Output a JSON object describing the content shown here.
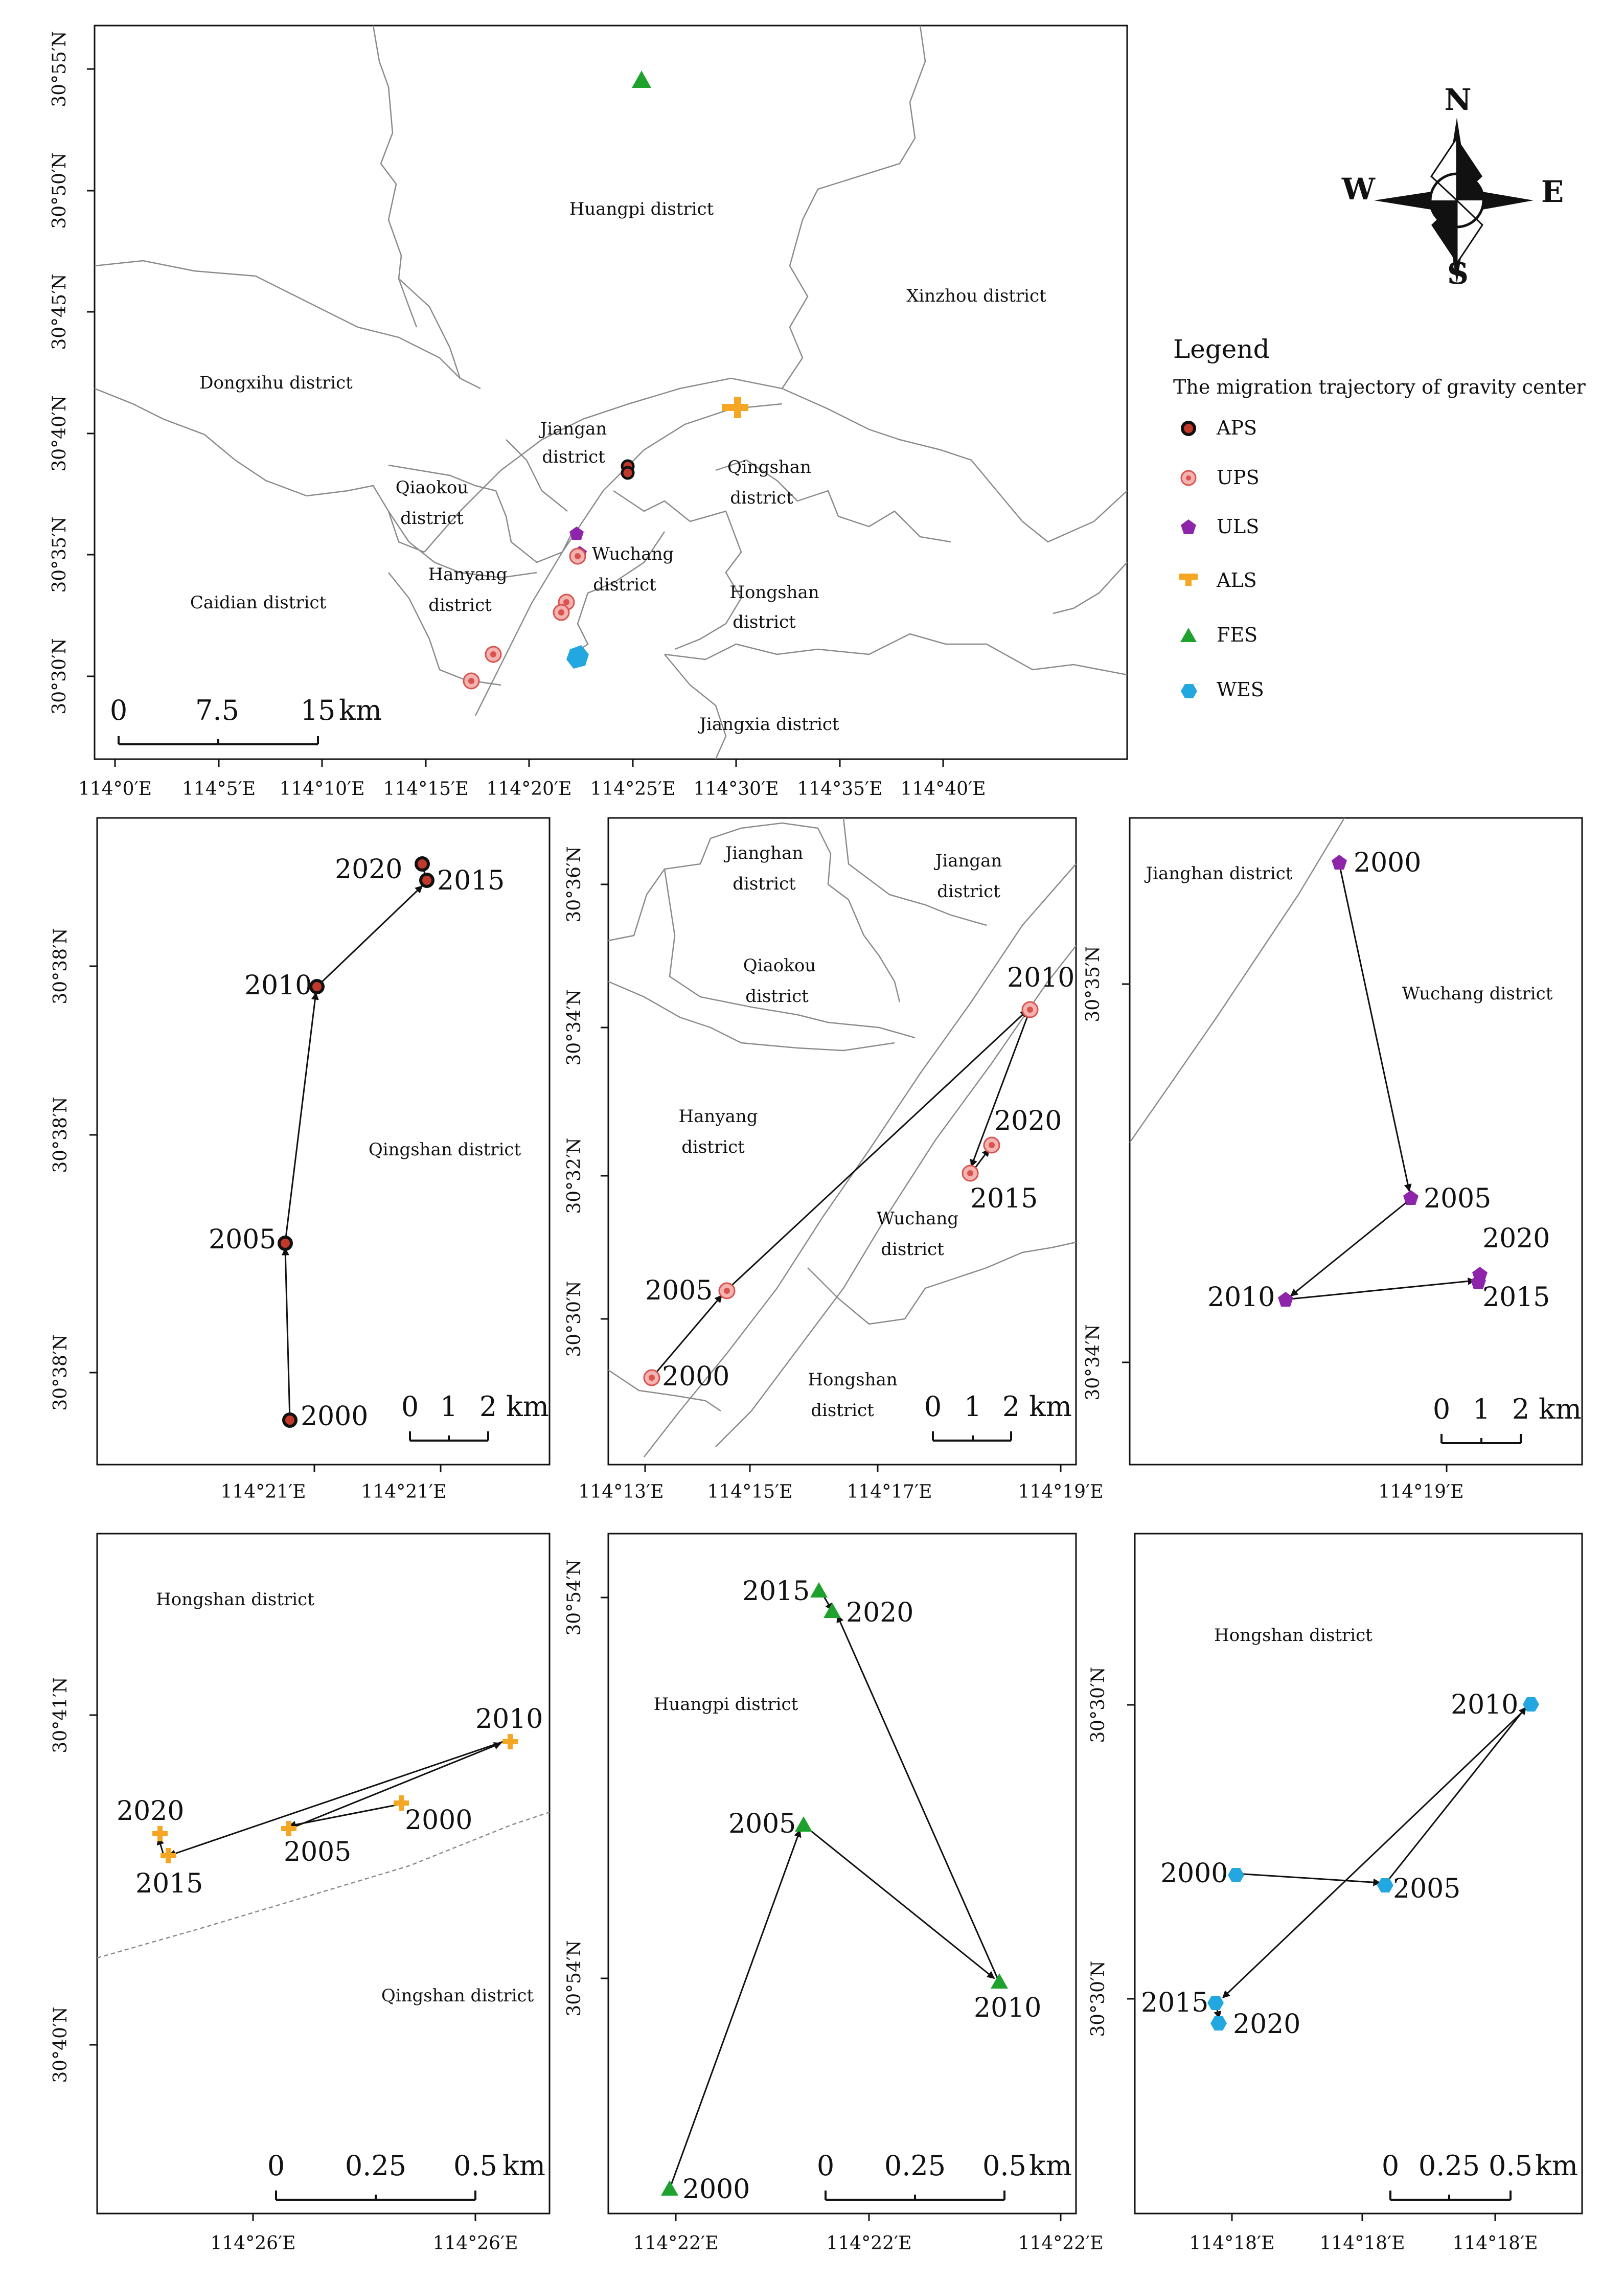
{
  "colors": {
    "APS": "#c0392b",
    "UPS": "#e57373",
    "ULS": "#8e24aa",
    "ALS": "#f5a623",
    "FES": "#1fa12e",
    "WES": "#22a7e0"
  },
  "compass": {
    "n": "N",
    "s": "S",
    "e": "E",
    "w": "W"
  },
  "legend": {
    "title": "Legend",
    "subtitle": "The migration trajectory of gravity center",
    "items": [
      {
        "key": "APS",
        "label": "APS",
        "icon": "black-ring-circle"
      },
      {
        "key": "UPS",
        "label": "UPS",
        "icon": "pink-target-circle"
      },
      {
        "key": "ULS",
        "label": "ULS",
        "icon": "purple-pentagon"
      },
      {
        "key": "ALS",
        "label": "ALS",
        "icon": "orange-cross"
      },
      {
        "key": "FES",
        "label": "FES",
        "icon": "green-triangle"
      },
      {
        "key": "WES",
        "label": "WES",
        "icon": "blue-hexagon"
      }
    ]
  },
  "main": {
    "x_ticks": [
      "114°0′E",
      "114°5′E",
      "114°10′E",
      "114°15′E",
      "114°20′E",
      "114°25′E",
      "114°30′E",
      "114°35′E",
      "114°40′E"
    ],
    "y_ticks": [
      "30°55′N",
      "30°50′N",
      "30°45′N",
      "30°40′N",
      "30°35′N",
      "30°30′N"
    ],
    "districts": [
      "Huangpi district",
      "Xinzhou district",
      "Dongxihu district",
      "Jiangan district",
      "Qingshan district",
      "Qiaokou district",
      "Wuchang district",
      "Hanyang district",
      "Hongshan district",
      "Caidian district",
      "Jiangxia district"
    ],
    "scale": {
      "labels": [
        "0",
        "7.5",
        "15"
      ],
      "unit": "km"
    }
  },
  "panels": [
    {
      "key": "APS",
      "x_ticks": [
        "114°21′E",
        "114°21′E"
      ],
      "y_ticks": [
        "30°38′N",
        "30°38′N",
        "30°38′N"
      ],
      "districts": [
        "Qingshan district"
      ],
      "scale": {
        "labels": [
          "0",
          "1",
          "2"
        ],
        "unit": "km"
      },
      "years": [
        "2000",
        "2005",
        "2010",
        "2015",
        "2020"
      ]
    },
    {
      "key": "UPS",
      "x_ticks": [
        "114°13′E",
        "114°15′E",
        "114°17′E",
        "114°19′E"
      ],
      "y_ticks": [
        "30°36′N",
        "30°34′N",
        "30°32′N",
        "30°30′N"
      ],
      "districts": [
        "Jianghan district",
        "Jiangan district",
        "Qiaokou district",
        "Hanyang district",
        "Wuchang district",
        "Hongshan district"
      ],
      "scale": {
        "labels": [
          "0",
          "1",
          "2"
        ],
        "unit": "km"
      },
      "years": [
        "2000",
        "2005",
        "2010",
        "2015",
        "2020"
      ]
    },
    {
      "key": "ULS",
      "x_ticks": [
        "114°19′E"
      ],
      "y_ticks": [
        "30°35′N",
        "30°34′N"
      ],
      "districts": [
        "Jianghan district",
        "Wuchang district"
      ],
      "scale": {
        "labels": [
          "0",
          "1",
          "2"
        ],
        "unit": "km"
      },
      "years": [
        "2000",
        "2005",
        "2010",
        "2015",
        "2020"
      ]
    },
    {
      "key": "ALS",
      "x_ticks": [
        "114°26′E",
        "114°26′E"
      ],
      "y_ticks": [
        "30°41′N",
        "30°40′N"
      ],
      "districts": [
        "Hongshan district",
        "Qingshan district"
      ],
      "scale": {
        "labels": [
          "0",
          "0.25",
          "0.5"
        ],
        "unit": "km"
      },
      "years": [
        "2000",
        "2005",
        "2010",
        "2015",
        "2020"
      ]
    },
    {
      "key": "FES",
      "x_ticks": [
        "114°22′E",
        "114°22′E",
        "114°22′E"
      ],
      "y_ticks": [
        "30°54′N",
        "30°54′N"
      ],
      "districts": [
        "Huangpi district"
      ],
      "scale": {
        "labels": [
          "0",
          "0.25",
          "0.5"
        ],
        "unit": "km"
      },
      "years": [
        "2000",
        "2005",
        "2010",
        "2015",
        "2020"
      ]
    },
    {
      "key": "WES",
      "x_ticks": [
        "114°18′E",
        "114°18′E",
        "114°18′E"
      ],
      "y_ticks": [
        "30°30′N",
        "30°30′N"
      ],
      "districts": [
        "Hongshan district"
      ],
      "scale": {
        "labels": [
          "0",
          "0.25",
          "0.5"
        ],
        "unit": "km"
      },
      "years": [
        "2000",
        "2005",
        "2010",
        "2015",
        "2020"
      ]
    }
  ]
}
